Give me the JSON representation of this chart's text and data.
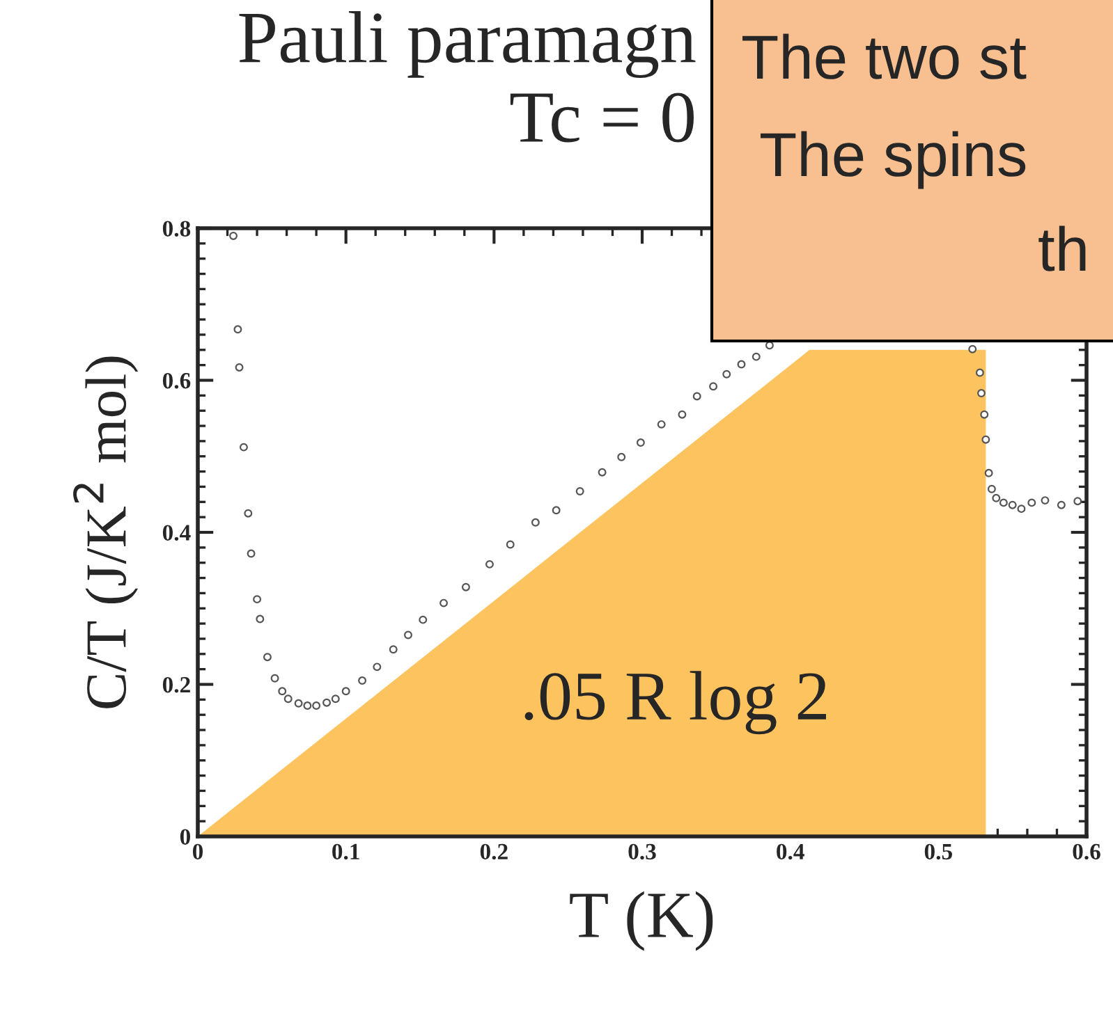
{
  "chart_data": {
    "type": "scatter",
    "title": "Pauli paramagn\nTc = 0",
    "xlabel": "T (K)",
    "ylabel": "C/T (J/K$^{2}$ mol)",
    "xlim": [
      0,
      0.6
    ],
    "xticks": [
      0,
      0.1,
      0.2,
      0.3,
      0.4,
      0.5,
      0.6
    ],
    "ylim": [
      0,
      0.8
    ],
    "yticks": [
      0,
      0.2,
      0.4,
      0.6,
      0.8
    ],
    "grid": false,
    "series": [
      {
        "type": "area",
        "color": "#fdc35f",
        "x": [
          0,
          0.413,
          0.532,
          0.532
        ],
        "values": [
          0,
          0.64,
          0.64,
          0
        ]
      },
      {
        "color": "#555555",
        "marker": "circle",
        "x": [
          0.024,
          0.027,
          0.028,
          0.031,
          0.034,
          0.036,
          0.04,
          0.042,
          0.047,
          0.052,
          0.057,
          0.061,
          0.068,
          0.074,
          0.08,
          0.087,
          0.093,
          0.1,
          0.111,
          0.121,
          0.132,
          0.142,
          0.152,
          0.166,
          0.181,
          0.197,
          0.211,
          0.228,
          0.242,
          0.258,
          0.273,
          0.286,
          0.299,
          0.313,
          0.327,
          0.337,
          0.348,
          0.357,
          0.367,
          0.377,
          0.386,
          0.489,
          0.523,
          0.528,
          0.529,
          0.531,
          0.532,
          0.534,
          0.536,
          0.539,
          0.544,
          0.55,
          0.556,
          0.563,
          0.572,
          0.583,
          0.594
        ],
        "values": [
          0.79,
          0.667,
          0.617,
          0.512,
          0.425,
          0.372,
          0.312,
          0.286,
          0.236,
          0.208,
          0.191,
          0.181,
          0.175,
          0.172,
          0.172,
          0.176,
          0.181,
          0.191,
          0.205,
          0.223,
          0.246,
          0.265,
          0.285,
          0.307,
          0.328,
          0.358,
          0.384,
          0.413,
          0.429,
          0.454,
          0.479,
          0.499,
          0.518,
          0.542,
          0.555,
          0.579,
          0.592,
          0.608,
          0.621,
          0.631,
          0.646,
          null,
          0.641,
          0.61,
          0.583,
          0.555,
          0.522,
          0.478,
          0.457,
          0.445,
          0.439,
          0.436,
          0.431,
          0.439,
          0.442,
          0.436,
          0.441
        ]
      }
    ],
    "annotations": [
      ".05 R log 2",
      "The two st",
      "The spins",
      "th"
    ]
  }
}
